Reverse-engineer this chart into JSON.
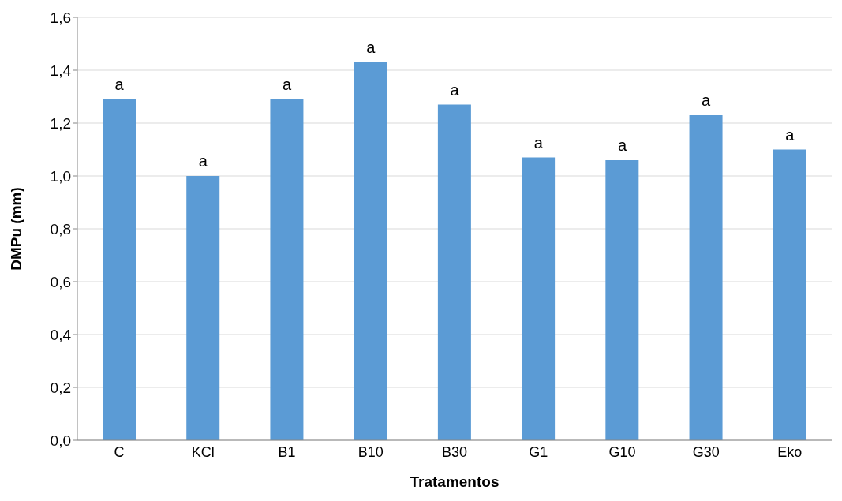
{
  "chart_data": {
    "type": "bar",
    "xlabel": "Tratamentos",
    "ylabel": "DMPu (mm)",
    "categories": [
      "C",
      "KCl",
      "B1",
      "B10",
      "B30",
      "G1",
      "G10",
      "G30",
      "Eko"
    ],
    "values": [
      1.29,
      1.0,
      1.29,
      1.43,
      1.27,
      1.07,
      1.06,
      1.23,
      1.1
    ],
    "color": "#5b9bd5",
    "ylim": [
      0,
      1.6
    ],
    "yticks": [
      {
        "value": 0,
        "label": "0,0"
      },
      {
        "value": 0.2,
        "label": "0,2"
      },
      {
        "value": 0.4,
        "label": "0,4"
      },
      {
        "value": 0.6,
        "label": "0,6"
      },
      {
        "value": 0.8,
        "label": "0,8"
      },
      {
        "value": 1.0,
        "label": "1,0"
      },
      {
        "value": 1.2,
        "label": "1,2"
      },
      {
        "value": 1.4,
        "label": "1,4"
      },
      {
        "value": 1.6,
        "label": "1,6"
      }
    ],
    "grid": "y",
    "annotations": [
      {
        "text": "a",
        "x": "C",
        "y": 1.29
      },
      {
        "text": "a",
        "x": "KCl",
        "y": 1.0
      },
      {
        "text": "a",
        "x": "B1",
        "y": 1.29
      },
      {
        "text": "a",
        "x": "B10",
        "y": 1.43
      },
      {
        "text": "a",
        "x": "B30",
        "y": 1.27
      },
      {
        "text": "a",
        "x": "G1",
        "y": 1.07
      },
      {
        "text": "a",
        "x": "G10",
        "y": 1.06
      },
      {
        "text": "a",
        "x": "G30",
        "y": 1.23
      },
      {
        "text": "a",
        "x": "Eko",
        "y": 1.1
      }
    ]
  }
}
